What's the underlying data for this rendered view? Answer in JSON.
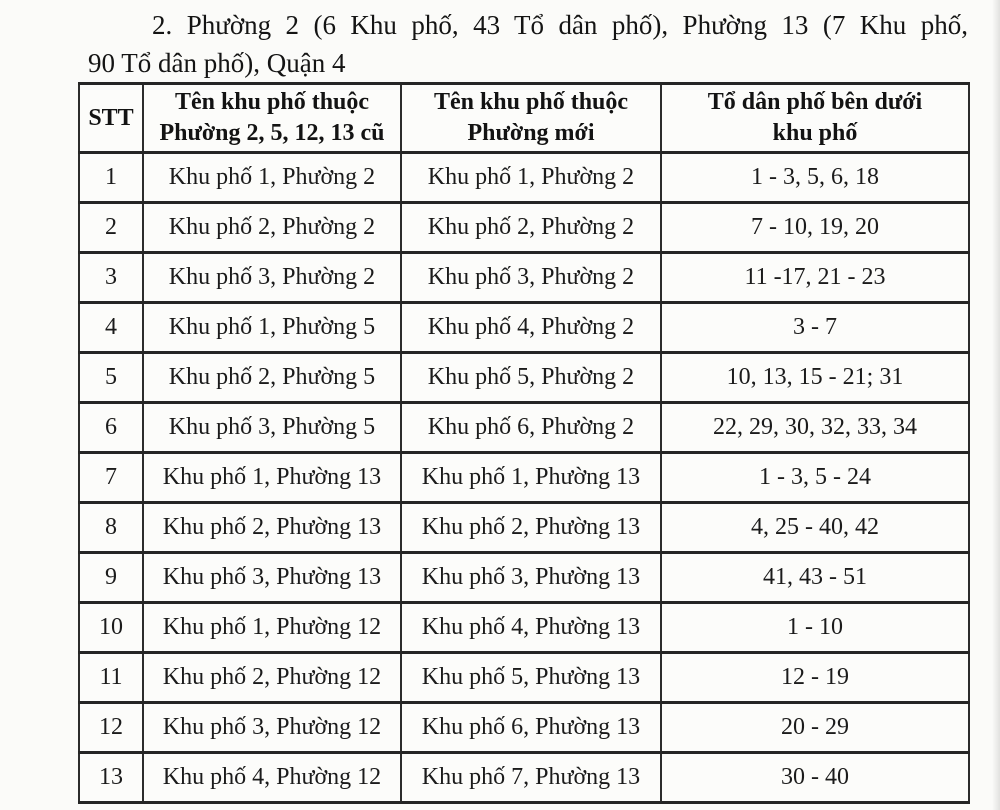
{
  "page": {
    "heading_line1": "2. Phường 2 (6 Khu phố, 43 Tổ dân phố), Phường 13 (7 Khu phố,",
    "heading_line2": "90 Tổ dân phố), Quận 4"
  },
  "table": {
    "headers": {
      "stt": "STT",
      "old_line1": "Tên khu phố thuộc",
      "old_line2": "Phường 2, 5, 12, 13 cũ",
      "new_line1": "Tên khu phố thuộc",
      "new_line2": "Phường mới",
      "units_line1": "Tổ dân phố bên dưới",
      "units_line2": "khu phố"
    },
    "rows": [
      {
        "stt": "1",
        "old": "Khu phố 1, Phường 2",
        "new": "Khu phố 1, Phường 2",
        "units": "1 - 3, 5, 6, 18"
      },
      {
        "stt": "2",
        "old": "Khu phố 2, Phường 2",
        "new": "Khu phố 2, Phường 2",
        "units": "7 - 10, 19, 20"
      },
      {
        "stt": "3",
        "old": "Khu phố 3, Phường 2",
        "new": "Khu phố 3, Phường 2",
        "units": "11 -17, 21 - 23"
      },
      {
        "stt": "4",
        "old": "Khu phố 1, Phường 5",
        "new": "Khu phố 4, Phường 2",
        "units": "3 - 7"
      },
      {
        "stt": "5",
        "old": "Khu phố 2, Phường 5",
        "new": "Khu phố 5, Phường 2",
        "units": "10, 13, 15 - 21; 31"
      },
      {
        "stt": "6",
        "old": "Khu phố 3, Phường 5",
        "new": "Khu phố 6, Phường 2",
        "units": "22, 29, 30, 32, 33, 34"
      },
      {
        "stt": "7",
        "old": "Khu phố 1, Phường 13",
        "new": "Khu phố 1, Phường 13",
        "units": "1 - 3, 5 - 24"
      },
      {
        "stt": "8",
        "old": "Khu phố 2, Phường 13",
        "new": "Khu phố 2, Phường 13",
        "units": "4, 25 - 40, 42"
      },
      {
        "stt": "9",
        "old": "Khu phố 3, Phường 13",
        "new": "Khu phố 3, Phường 13",
        "units": "41, 43 - 51"
      },
      {
        "stt": "10",
        "old": "Khu phố 1, Phường 12",
        "new": "Khu phố 4, Phường 13",
        "units": "1 - 10"
      },
      {
        "stt": "11",
        "old": "Khu phố 2, Phường 12",
        "new": "Khu phố 5, Phường 13",
        "units": "12 - 19"
      },
      {
        "stt": "12",
        "old": "Khu phố 3, Phường 12",
        "new": "Khu phố 6, Phường 13",
        "units": "20 - 29"
      },
      {
        "stt": "13",
        "old": "Khu phố 4, Phường 12",
        "new": "Khu phố 7, Phường 13",
        "units": "30 - 40"
      }
    ]
  },
  "colors": {
    "background": "#fbfbf9",
    "text": "#1a1a1a",
    "border": "#2c2c2c"
  }
}
